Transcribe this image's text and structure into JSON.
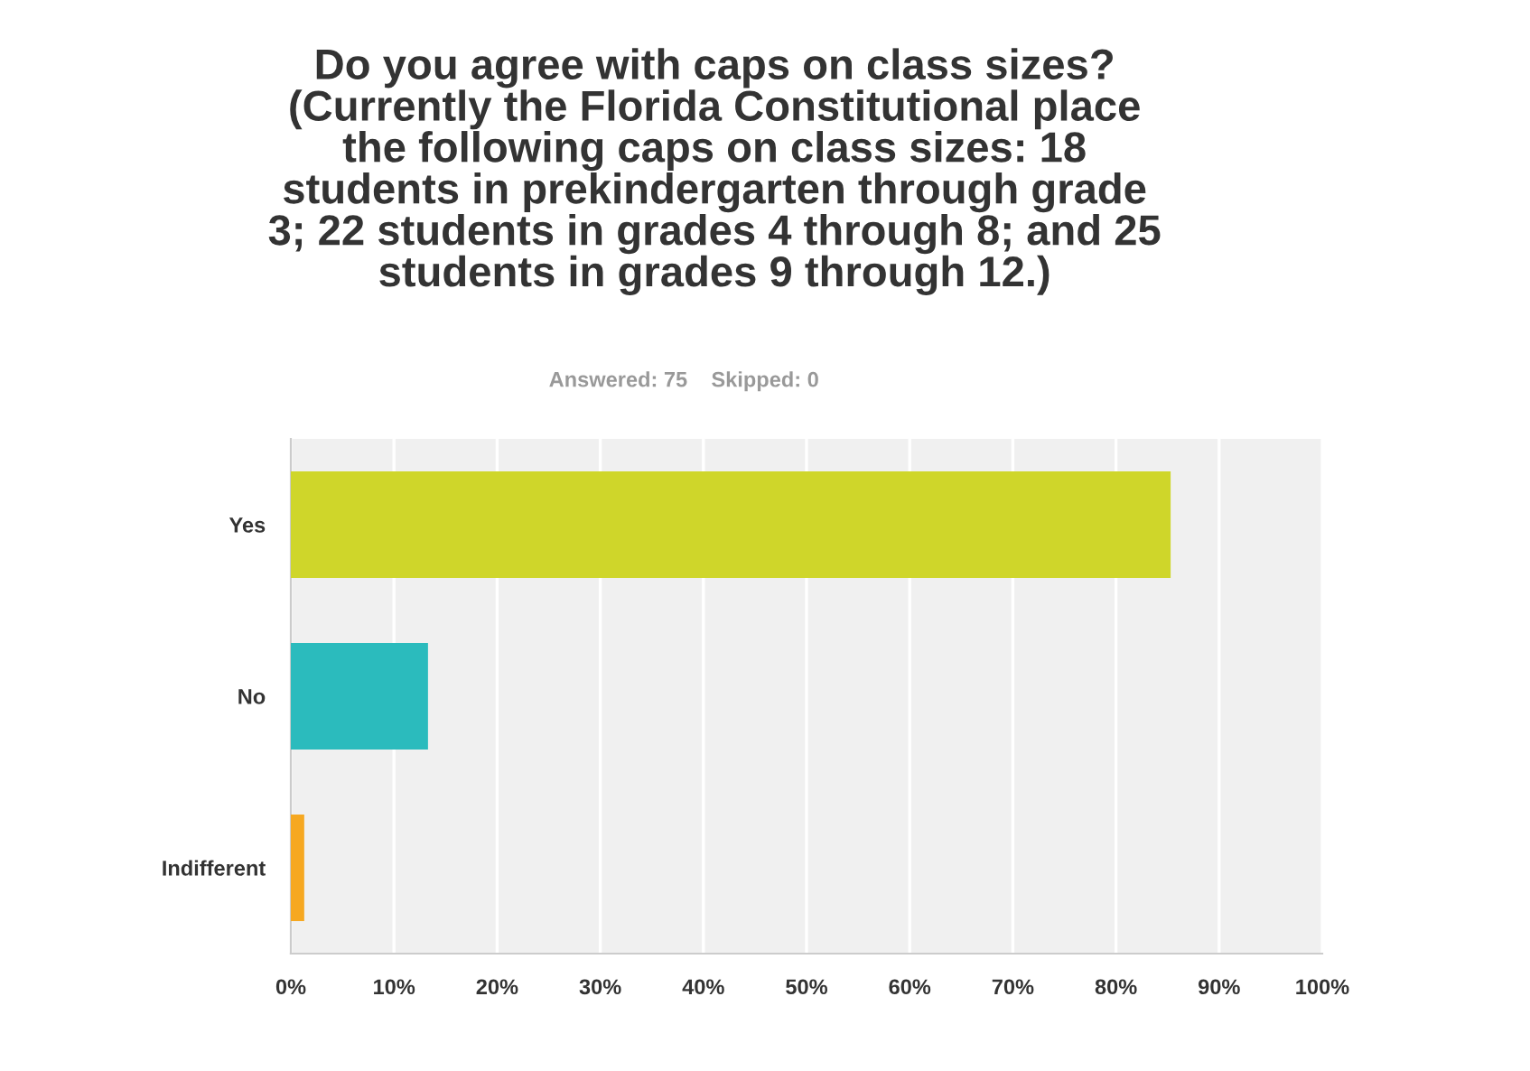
{
  "chart_data": {
    "type": "bar",
    "orientation": "horizontal",
    "title": "Do you agree with caps on class sizes?\n(Currently the Florida Constitutional place\nthe following caps on class sizes: 18\nstudents in prekindergarten through grade\n3; 22 students in grades 4 through 8; and 25\nstudents in grades 9 through 12.)",
    "subtitle": "Answered: 75    Skipped: 0",
    "categories": [
      "Yes",
      "No",
      "Indifferent"
    ],
    "values": [
      85.3,
      13.3,
      1.3
    ],
    "colors": [
      "#cfd62a",
      "#2bbbbd",
      "#f6a821"
    ],
    "xlim": [
      0,
      100
    ],
    "xticks": [
      {
        "value": 0,
        "label": "0%"
      },
      {
        "value": 10,
        "label": "10%"
      },
      {
        "value": 20,
        "label": "20%"
      },
      {
        "value": 30,
        "label": "30%"
      },
      {
        "value": 40,
        "label": "40%"
      },
      {
        "value": 50,
        "label": "50%"
      },
      {
        "value": 60,
        "label": "60%"
      },
      {
        "value": 70,
        "label": "70%"
      },
      {
        "value": 80,
        "label": "80%"
      },
      {
        "value": 90,
        "label": "90%"
      },
      {
        "value": 100,
        "label": "100%"
      }
    ],
    "grid": "x"
  }
}
